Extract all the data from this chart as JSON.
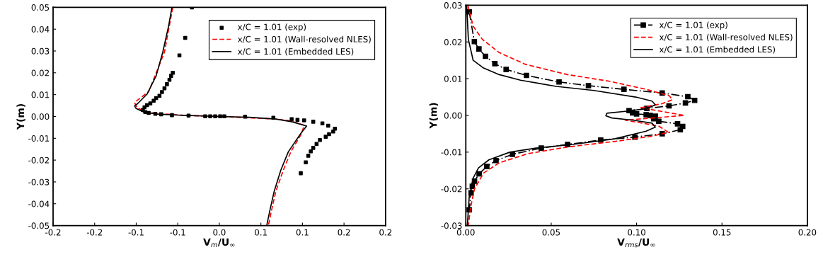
{
  "chart_data": [
    {
      "type": "line",
      "xlabel": "V$_{m}$/U$_{∞}$",
      "ylabel": "Y(m)",
      "xlim": [
        -0.2,
        0.2
      ],
      "ylim": [
        -0.05,
        0.05
      ],
      "xticks": [
        {
          "value": -0.2,
          "label": "-0.2"
        },
        {
          "value": -0.15,
          "label": "-0.2"
        },
        {
          "value": -0.1,
          "label": "-0.1"
        },
        {
          "value": -0.05,
          "label": "-0.1"
        },
        {
          "value": 0,
          "label": "0.0"
        },
        {
          "value": 0.05,
          "label": "0.1"
        },
        {
          "value": 0.1,
          "label": "0.1"
        },
        {
          "value": 0.15,
          "label": "0.2"
        },
        {
          "value": 0.2,
          "label": "0.2"
        }
      ],
      "yticks": [
        -0.05,
        -0.04,
        -0.03,
        -0.02,
        -0.01,
        {
          "value": 0,
          "label": "0.00"
        },
        0.01,
        0.02,
        0.03,
        0.04,
        0.05
      ],
      "grid": false,
      "legend": "top right",
      "series": [
        {
          "name": "x/C = 1.01 (exp)",
          "type": "scatter",
          "marker": "square",
          "color": "#000000",
          "x": [
            -0.033,
            -0.041,
            -0.048,
            -0.056,
            -0.058,
            -0.06,
            -0.063,
            -0.066,
            -0.069,
            -0.072,
            -0.076,
            -0.079,
            -0.083,
            -0.087,
            -0.09,
            -0.092,
            -0.089,
            -0.085,
            -0.077,
            -0.07,
            -0.057,
            -0.037,
            -0.017,
            -0.011,
            -0.005,
            0.001,
            0.006,
            0.031,
            0.065,
            0.087,
            0.094,
            0.102,
            0.113,
            0.124,
            0.131,
            0.139,
            0.137,
            0.132,
            0.128,
            0.121,
            0.117,
            0.113,
            0.11,
            0.107,
            0.104,
            0.098
          ],
          "values": [
            0.05,
            0.036,
            0.028,
            0.02,
            0.0186,
            0.0168,
            0.0148,
            0.0129,
            0.0112,
            0.0095,
            0.0084,
            0.0072,
            0.006,
            0.0052,
            0.0042,
            0.003,
            0.002,
            0.0016,
            0.0012,
            0.001,
            0.0006,
            0.0004,
            0.0001,
            0.0001,
            0.0001,
            0.0001,
            0.0001,
            -0.0001,
            -0.0006,
            -0.0012,
            -0.0016,
            -0.0018,
            -0.0024,
            -0.0032,
            -0.0042,
            -0.0056,
            -0.0069,
            -0.0081,
            -0.0093,
            -0.0108,
            -0.0126,
            -0.0144,
            -0.016,
            -0.018,
            -0.021,
            -0.026
          ]
        },
        {
          "name": "x/C = 1.01 (Wall-resolved NLES)",
          "line_style": "dashed",
          "color": "#ff0000",
          "x": [
            -0.056,
            -0.066,
            -0.085,
            -0.102,
            -0.099,
            -0.087,
            -0.043,
            0,
            0.068,
            0.085,
            0.102,
            0.099,
            0.086,
            0.077,
            0.068,
            0.063,
            0.059
          ],
          "values": [
            0.05,
            0.0295,
            0.0114,
            0.0064,
            0.004,
            0.0018,
            0.0005,
            0,
            -0.0012,
            -0.002,
            -0.004,
            -0.0078,
            -0.0162,
            -0.0246,
            -0.0343,
            -0.0427,
            -0.05
          ]
        },
        {
          "name": "x/C = 1.01 (Embedded LES)",
          "line_style": "solid",
          "color": "#000000",
          "x": [
            -0.057,
            -0.061,
            -0.068,
            -0.076,
            -0.087,
            -0.098,
            -0.102,
            -0.1,
            -0.091,
            -0.074,
            -0.043,
            0,
            0.036,
            0.068,
            0.087,
            0.105,
            0.098,
            0.083,
            0.074,
            0.066,
            0.061,
            0.057
          ],
          "values": [
            0.05,
            0.0415,
            0.0295,
            0.0186,
            0.0102,
            0.006,
            0.0048,
            0.0036,
            0.002,
            0.0011,
            0.0005,
            0,
            -0.0004,
            -0.0012,
            -0.0024,
            -0.0044,
            -0.0078,
            -0.0162,
            -0.0246,
            -0.0343,
            -0.0427,
            -0.05
          ]
        }
      ]
    },
    {
      "type": "line",
      "xlabel": "V$_{rms}$/U$_{∞}$",
      "ylabel": "Y(m)",
      "xlim": [
        0,
        0.2
      ],
      "ylim": [
        -0.03,
        0.03
      ],
      "xticks": [
        {
          "value": 0,
          "label": "0.00"
        },
        {
          "value": 0.05,
          "label": "0.05"
        },
        {
          "value": 0.1,
          "label": "0.10"
        },
        {
          "value": 0.15,
          "label": "0.15"
        },
        {
          "value": 0.2,
          "label": "0.20"
        }
      ],
      "yticks": [
        -0.03,
        -0.02,
        -0.01,
        {
          "value": 0,
          "label": "0.00"
        },
        0.01,
        0.02,
        0.03
      ],
      "grid": false,
      "legend": "top right",
      "series": [
        {
          "name": "x/C = 1.01 (exp)",
          "marker": "square",
          "line_style": "dashdot",
          "color": "#000000",
          "x": [
            0.002,
            0.005,
            0.0077,
            0.0115,
            0.017,
            0.0236,
            0.0355,
            0.0546,
            0.0718,
            0.0926,
            0.115,
            0.13,
            0.134,
            0.1286,
            0.119,
            0.106,
            0.0956,
            0.0976,
            0.1,
            0.1056,
            0.108,
            0.111,
            0.11,
            0.113,
            0.124,
            0.127,
            0.1256,
            0.115,
            0.099,
            0.079,
            0.0596,
            0.0442,
            0.0273,
            0.0177,
            0.0123,
            0.0078,
            0.0051,
            0.0038,
            0.0031,
            0.002
          ],
          "values": [
            0.0282,
            0.0201,
            0.0181,
            0.0161,
            0.0141,
            0.0125,
            0.0109,
            0.0091,
            0.0081,
            0.0071,
            0.0061,
            0.0051,
            0.0041,
            0.0034,
            0.0026,
            0.0019,
            0.0013,
            0.0007,
            0.0004,
            0.0002,
            0.0,
            -0.0002,
            -0.0009,
            -0.0016,
            -0.0023,
            -0.003,
            -0.0039,
            -0.005,
            -0.0059,
            -0.0067,
            -0.0079,
            -0.0089,
            -0.0106,
            -0.0123,
            -0.0139,
            -0.0159,
            -0.0179,
            -0.0193,
            -0.0211,
            -0.0257
          ]
        },
        {
          "name": "x/C = 1.01 (Wall-resolved NLES)",
          "line_style": "dashed",
          "color": "#ff0000",
          "x": [
            0.0012,
            0.0043,
            0.0097,
            0.0196,
            0.035,
            0.0596,
            0.0841,
            0.1056,
            0.119,
            0.121,
            0.115,
            0.1025,
            0.128,
            0.0933,
            0.113,
            0.1186,
            0.1087,
            0.087,
            0.0596,
            0.0365,
            0.0196,
            0.0104,
            0.0051,
            0.0028,
            0.0015
          ],
          "values": [
            0.03,
            0.0243,
            0.0207,
            0.0171,
            0.0139,
            0.0111,
            0.0093,
            0.0071,
            0.0054,
            0.0043,
            0.0032,
            0.0021,
            0.0,
            -0.0013,
            -0.0029,
            -0.0046,
            -0.0057,
            -0.0071,
            -0.0086,
            -0.0104,
            -0.0129,
            -0.0157,
            -0.02,
            -0.025,
            -0.03
          ]
        },
        {
          "name": "x/C = 1.01 (Embedded LES)",
          "line_style": "solid",
          "color": "#000000",
          "x": [
            0.0005,
            0.0015,
            0.0043,
            0.0104,
            0.0196,
            0.032,
            0.053,
            0.075,
            0.0995,
            0.109,
            0.111,
            0.1056,
            0.0933,
            0.0826,
            0.082,
            0.0856,
            0.098,
            0.109,
            0.111,
            0.1056,
            0.087,
            0.0626,
            0.0411,
            0.0258,
            0.0135,
            0.0074,
            0.0043,
            0.002,
            0.0009
          ],
          "values": [
            0.03,
            0.0207,
            0.015,
            0.0129,
            0.0111,
            0.0096,
            0.0079,
            0.0068,
            0.005,
            0.0039,
            0.0029,
            0.0018,
            0.0011,
            0.0006,
            -0.0001,
            -0.0007,
            -0.0013,
            -0.0021,
            -0.0032,
            -0.0043,
            -0.0064,
            -0.0079,
            -0.0089,
            -0.01,
            -0.0121,
            -0.0143,
            -0.0171,
            -0.0221,
            -0.03
          ]
        }
      ]
    }
  ]
}
